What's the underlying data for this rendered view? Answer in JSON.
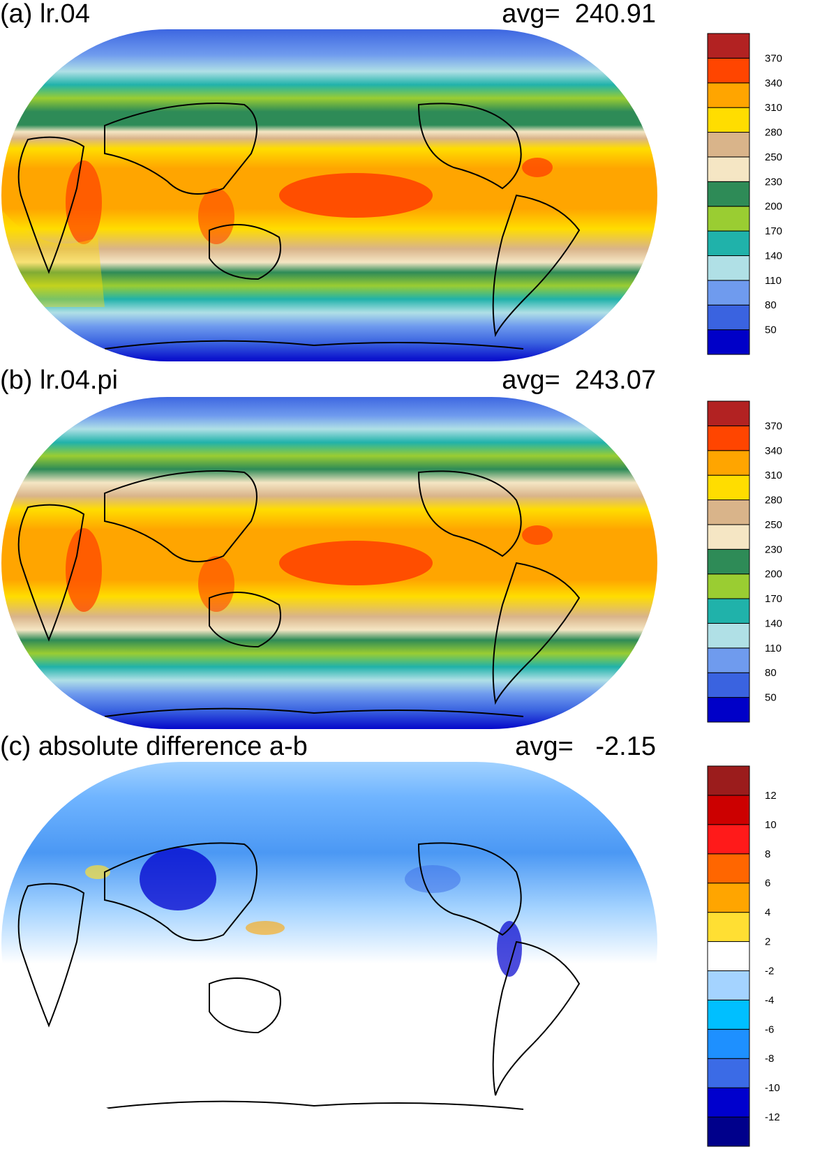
{
  "panels": [
    {
      "id": "a",
      "title": "(a) lr.04",
      "avg_text": "avg=  240.91",
      "legend": {
        "colors": [
          "#0000c8",
          "#3a63e0",
          "#6f9bee",
          "#b0e0e6",
          "#20b2aa",
          "#9acd32",
          "#2e8b57",
          "#f5e6c4",
          "#d9b48a",
          "#ffdd00",
          "#ffa500",
          "#ff4500",
          "#b22222"
        ],
        "labels": [
          "50",
          "80",
          "110",
          "140",
          "170",
          "200",
          "230",
          "250",
          "280",
          "310",
          "340",
          "370"
        ]
      }
    },
    {
      "id": "b",
      "title": "(b) lr.04.pi",
      "avg_text": "avg=  243.07",
      "legend": {
        "colors": [
          "#0000c8",
          "#3a63e0",
          "#6f9bee",
          "#b0e0e6",
          "#20b2aa",
          "#9acd32",
          "#2e8b57",
          "#f5e6c4",
          "#d9b48a",
          "#ffdd00",
          "#ffa500",
          "#ff4500",
          "#b22222"
        ],
        "labels": [
          "50",
          "80",
          "110",
          "140",
          "170",
          "200",
          "230",
          "250",
          "280",
          "310",
          "340",
          "370"
        ]
      }
    },
    {
      "id": "c",
      "title": "(c) absolute difference a-b",
      "avg_text": "avg=   -2.15",
      "legend": {
        "colors": [
          "#00008b",
          "#0000cd",
          "#3b6be6",
          "#1e90ff",
          "#00bfff",
          "#a4d3ff",
          "#ffffff",
          "#ffdf33",
          "#ffa500",
          "#ff6600",
          "#ff1a1a",
          "#cc0000",
          "#9b1c1c"
        ],
        "labels": [
          "-12",
          "-10",
          "-8",
          "-6",
          "-4",
          "-2",
          "2",
          "4",
          "6",
          "8",
          "10",
          "12"
        ]
      }
    }
  ]
}
